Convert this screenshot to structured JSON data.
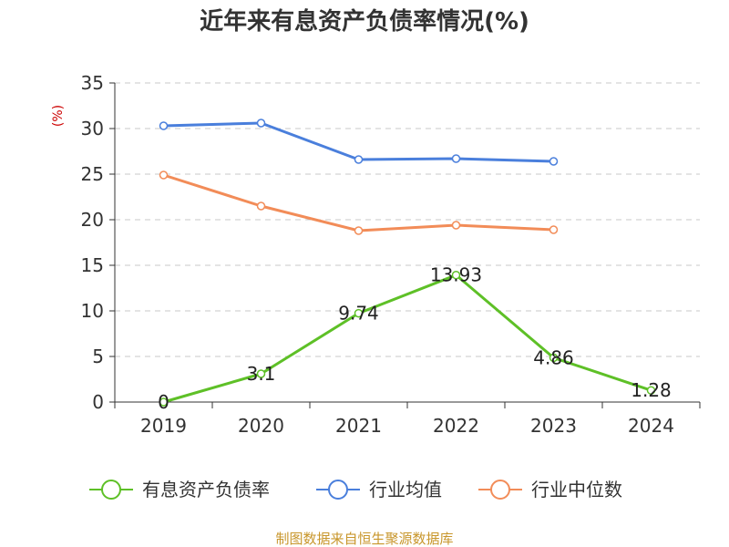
{
  "chart_data": {
    "type": "line",
    "title": "近年来有息资产负债率情况(%)",
    "ylabel": "(%)",
    "categories": [
      "2019",
      "2020",
      "2021",
      "2022",
      "2023",
      "2024"
    ],
    "ylim": [
      0,
      35
    ],
    "yticks": [
      0,
      5,
      10,
      15,
      20,
      25,
      30,
      35
    ],
    "grid": true,
    "legend_position": "bottom",
    "series": [
      {
        "name": "有息资产负债率",
        "color": "#5ec027",
        "labels_shown": true,
        "values": [
          0,
          3.1,
          9.74,
          13.93,
          4.86,
          1.28
        ]
      },
      {
        "name": "行业均值",
        "color": "#4a7fdc",
        "labels_shown": false,
        "values": [
          30.3,
          30.6,
          26.6,
          26.7,
          26.4,
          null
        ]
      },
      {
        "name": "行业中位数",
        "color": "#f28c58",
        "labels_shown": false,
        "values": [
          24.9,
          21.5,
          18.8,
          19.4,
          18.9,
          null
        ]
      }
    ],
    "data_labels": [
      "0",
      "3.1",
      "9.74",
      "13.93",
      "4.86",
      "1.28"
    ],
    "source": "制图数据来自恒生聚源数据库"
  }
}
